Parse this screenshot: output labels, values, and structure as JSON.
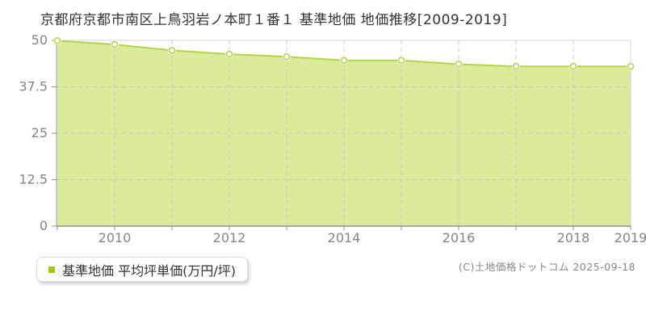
{
  "page": {
    "copyright": "(C)土地価格ドットコム 2025-09-18"
  },
  "legend": {
    "label": "基準地価 平均坪単価(万円/坪)"
  },
  "chart_data": {
    "type": "area",
    "title": "京都府京都市南区上鳥羽岩ノ本町１番１ 基準地価 地価推移[2009-2019]",
    "x": [
      2009,
      2010,
      2011,
      2012,
      2013,
      2014,
      2015,
      2016,
      2017,
      2018,
      2019
    ],
    "series": [
      {
        "name": "基準地価 平均坪単価(万円/坪)",
        "values": [
          49.9,
          48.9,
          47.3,
          46.3,
          45.6,
          44.6,
          44.6,
          43.6,
          43.0,
          43.0,
          43.0
        ]
      }
    ],
    "xlabel": "",
    "ylabel": "",
    "ylim": [
      0,
      50
    ],
    "yticks": [
      0,
      12.5,
      25,
      37.5,
      50
    ],
    "ytick_labels": [
      "0",
      "12.5",
      "25",
      "37.5",
      "50"
    ],
    "xticks_labeled": [
      2010,
      2012,
      2014,
      2016,
      2018,
      2019
    ],
    "grid": true,
    "legend_position": "bottom-left",
    "colors": {
      "line": "#b5d44a",
      "fill": "#dcea9b",
      "marker_fill": "#ffffff",
      "grid": "#c9c9c9",
      "border": "#d4d4d4",
      "axis": "#909090",
      "tick_text": "#868686",
      "title_text": "#333333",
      "legend_marker": "#9fc717"
    }
  }
}
